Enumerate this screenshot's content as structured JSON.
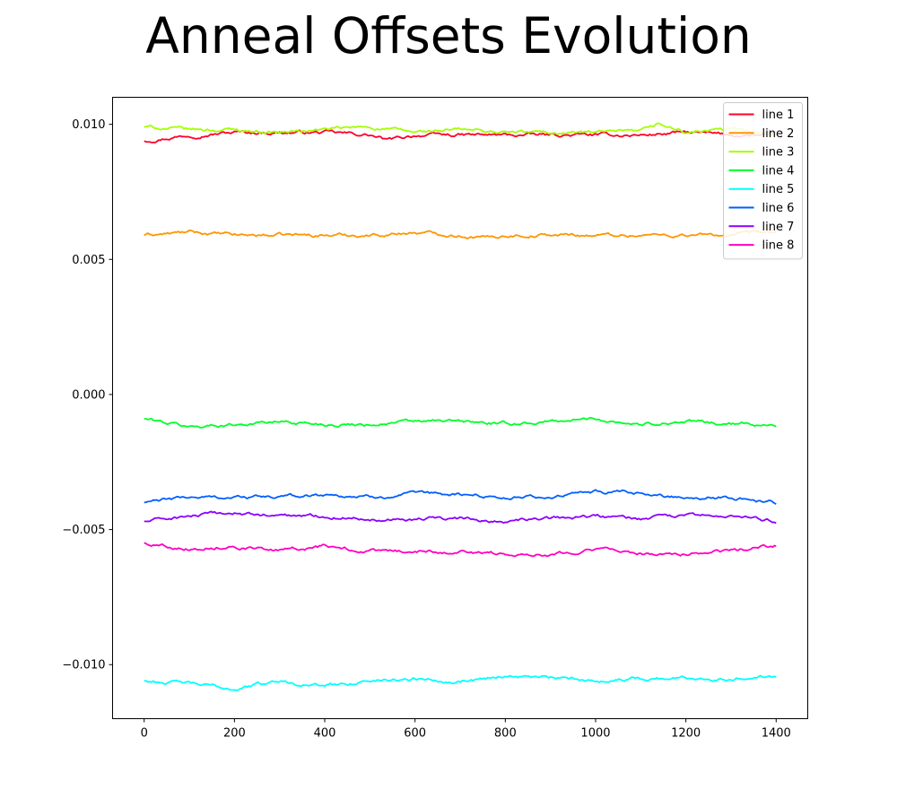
{
  "chart_data": {
    "type": "line",
    "title": "Anneal Offsets Evolution",
    "xlabel": "",
    "ylabel": "",
    "xlim": [
      -70,
      1470
    ],
    "ylim": [
      -0.012,
      0.011
    ],
    "xticks": [
      0,
      200,
      400,
      600,
      800,
      1000,
      1200,
      1400
    ],
    "xtick_labels": [
      "0",
      "200",
      "400",
      "600",
      "800",
      "1000",
      "1200",
      "1400"
    ],
    "yticks": [
      -0.01,
      -0.005,
      0.0,
      0.005,
      0.01
    ],
    "ytick_labels": [
      "−0.010",
      "−0.005",
      "0.000",
      "0.005",
      "0.010"
    ],
    "grid": false,
    "legend_position": "top-right",
    "x_range": [
      0,
      1400
    ],
    "series": [
      {
        "name": "line 1",
        "color": "#ff0029",
        "x": [
          0,
          100,
          200,
          300,
          400,
          500,
          540,
          600,
          700,
          800,
          900,
          1000,
          1100,
          1200,
          1300,
          1400
        ],
        "values": [
          0.0094,
          0.0096,
          0.0097,
          0.0097,
          0.0097,
          0.0096,
          0.0094,
          0.0096,
          0.0096,
          0.0096,
          0.0096,
          0.0096,
          0.0096,
          0.0097,
          0.0096,
          0.0096
        ]
      },
      {
        "name": "line 2",
        "color": "#ff9500",
        "x": [
          0,
          100,
          200,
          300,
          400,
          500,
          600,
          700,
          760,
          800,
          900,
          1000,
          1100,
          1200,
          1300,
          1400
        ],
        "values": [
          0.0059,
          0.006,
          0.0059,
          0.0059,
          0.0059,
          0.0059,
          0.006,
          0.0059,
          0.0058,
          0.0059,
          0.0059,
          0.0059,
          0.0059,
          0.0059,
          0.0059,
          0.006
        ]
      },
      {
        "name": "line 3",
        "color": "#a4ff00",
        "x": [
          0,
          100,
          200,
          300,
          400,
          500,
          600,
          700,
          800,
          900,
          1000,
          1100,
          1140,
          1200,
          1300,
          1400
        ],
        "values": [
          0.0099,
          0.0098,
          0.0098,
          0.0097,
          0.0098,
          0.0099,
          0.0097,
          0.0098,
          0.0097,
          0.0097,
          0.0097,
          0.0097,
          0.01,
          0.0097,
          0.0098,
          0.0097
        ]
      },
      {
        "name": "line 4",
        "color": "#00ff29",
        "x": [
          0,
          100,
          200,
          300,
          400,
          500,
          600,
          700,
          800,
          900,
          1000,
          1100,
          1200,
          1300,
          1400
        ],
        "values": [
          -0.0009,
          -0.0012,
          -0.0011,
          -0.001,
          -0.0011,
          -0.0011,
          -0.001,
          -0.001,
          -0.0011,
          -0.001,
          -0.0009,
          -0.0011,
          -0.001,
          -0.0011,
          -0.0011
        ]
      },
      {
        "name": "line 5",
        "color": "#00ffff",
        "x": [
          0,
          100,
          200,
          300,
          400,
          500,
          600,
          700,
          800,
          900,
          1000,
          1100,
          1200,
          1300,
          1400
        ],
        "values": [
          -0.0106,
          -0.0107,
          -0.0109,
          -0.0106,
          -0.0108,
          -0.0106,
          -0.0105,
          -0.0106,
          -0.0104,
          -0.0105,
          -0.0106,
          -0.0105,
          -0.0105,
          -0.0105,
          -0.0104
        ]
      },
      {
        "name": "line 6",
        "color": "#005fff",
        "x": [
          0,
          100,
          200,
          300,
          400,
          500,
          600,
          700,
          800,
          900,
          1000,
          1100,
          1200,
          1300,
          1400
        ],
        "values": [
          -0.004,
          -0.0038,
          -0.0038,
          -0.0038,
          -0.0037,
          -0.0038,
          -0.0037,
          -0.0037,
          -0.0038,
          -0.0038,
          -0.0036,
          -0.0037,
          -0.0038,
          -0.0038,
          -0.004
        ]
      },
      {
        "name": "line 7",
        "color": "#8b00ff",
        "x": [
          0,
          100,
          200,
          300,
          400,
          500,
          600,
          700,
          800,
          900,
          1000,
          1100,
          1200,
          1300,
          1400
        ],
        "values": [
          -0.0047,
          -0.0045,
          -0.0044,
          -0.0045,
          -0.0045,
          -0.0046,
          -0.0046,
          -0.0046,
          -0.0047,
          -0.0046,
          -0.0045,
          -0.0046,
          -0.0045,
          -0.0045,
          -0.0047
        ]
      },
      {
        "name": "line 8",
        "color": "#ff00c1",
        "x": [
          0,
          100,
          200,
          300,
          400,
          500,
          600,
          700,
          800,
          900,
          1000,
          1100,
          1200,
          1300,
          1400
        ],
        "values": [
          -0.0055,
          -0.0057,
          -0.0056,
          -0.0058,
          -0.0056,
          -0.0058,
          -0.0058,
          -0.0058,
          -0.0059,
          -0.0059,
          -0.0057,
          -0.0059,
          -0.0059,
          -0.0058,
          -0.0056
        ]
      }
    ]
  }
}
